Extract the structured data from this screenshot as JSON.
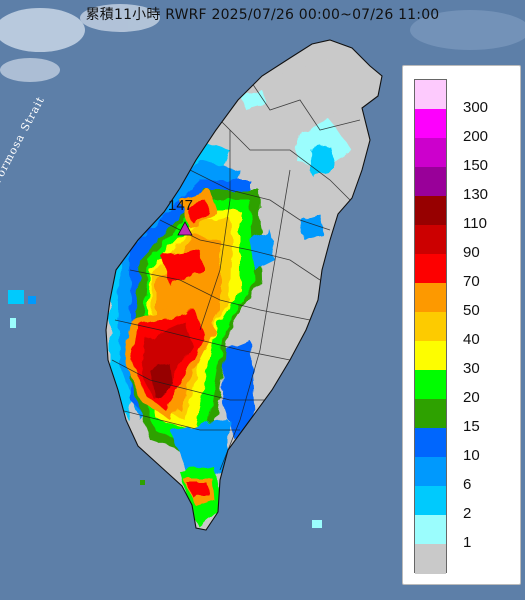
{
  "title": "累積11小時 RWRF 2025/07/26 00:00~07/26 11:00",
  "sea_label": "Formosa Strait",
  "max_marker": {
    "value": "147",
    "color": "#bf2ab8"
  },
  "colors": {
    "sea": "#5d7fa8",
    "land": "#c9c9c9"
  },
  "legend": [
    {
      "label": "300",
      "color": "#fdcafd"
    },
    {
      "label": "200",
      "color": "#fd00fd"
    },
    {
      "label": "150",
      "color": "#cc00cc"
    },
    {
      "label": "130",
      "color": "#990099"
    },
    {
      "label": "110",
      "color": "#970000"
    },
    {
      "label": "90",
      "color": "#cc0000"
    },
    {
      "label": "70",
      "color": "#fd0000"
    },
    {
      "label": "50",
      "color": "#fd9900"
    },
    {
      "label": "40",
      "color": "#fdcb00"
    },
    {
      "label": "30",
      "color": "#fdfd00"
    },
    {
      "label": "20",
      "color": "#00fd00"
    },
    {
      "label": "15",
      "color": "#2ea100"
    },
    {
      "label": "10",
      "color": "#0066fd"
    },
    {
      "label": "6",
      "color": "#0099fd"
    },
    {
      "label": "2",
      "color": "#00cafd"
    },
    {
      "label": "1",
      "color": "#9bfdfd"
    },
    {
      "label": "",
      "color": "#c9c9c9"
    }
  ]
}
